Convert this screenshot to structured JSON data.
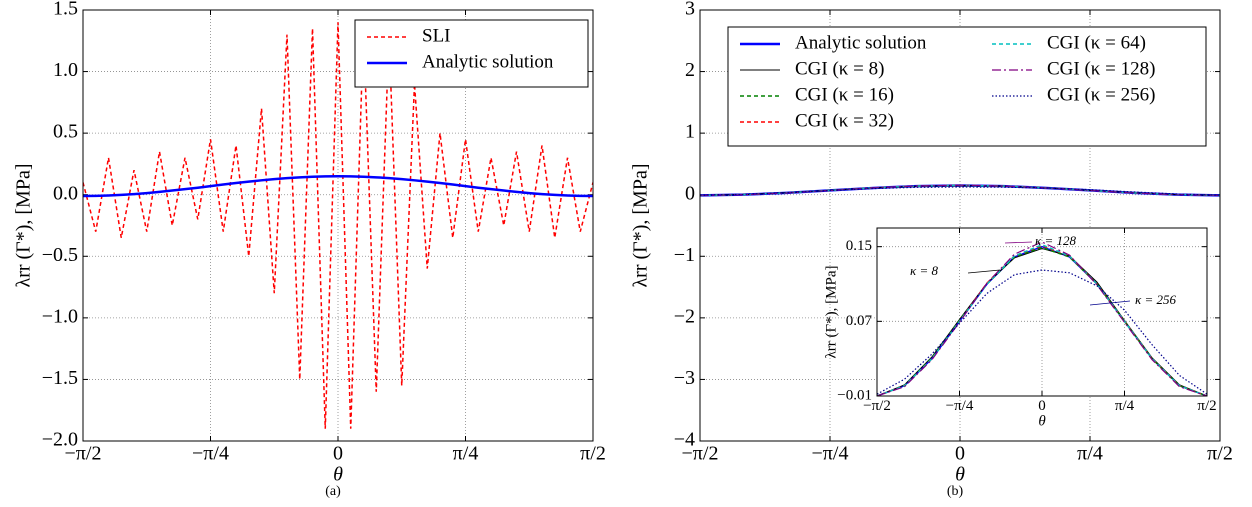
{
  "chart_data": [
    {
      "type": "line",
      "caption": "(a)",
      "xlabel": "θ",
      "ylabel": "λrr (Γ*), [MPa]",
      "grid": true,
      "legend": "upper right",
      "xlim": [
        -1.5708,
        1.5708
      ],
      "xticks": [
        {
          "value": -1.5708,
          "label": "−π/2"
        },
        {
          "value": -0.7854,
          "label": "−π/4"
        },
        0,
        {
          "value": 0.7854,
          "label": "π/4"
        },
        {
          "value": 1.5708,
          "label": "π/2"
        }
      ],
      "ylim": [
        -2.0,
        1.5
      ],
      "yticks": [
        {
          "value": -2.0,
          "label": "−2.0"
        },
        {
          "value": -1.5,
          "label": "−1.5"
        },
        {
          "value": -1.0,
          "label": "−1.0"
        },
        {
          "value": -0.5,
          "label": "−0.5"
        },
        {
          "value": 0,
          "label": "0.0"
        },
        0.5,
        {
          "value": 1.0,
          "label": "1.0"
        },
        1.5
      ],
      "x": [
        -1.5708,
        -1.4923,
        -1.4137,
        -1.3352,
        -1.2566,
        -1.1781,
        -1.0996,
        -1.021,
        -0.9425,
        -0.8639,
        -0.7854,
        -0.7069,
        -0.6283,
        -0.5498,
        -0.4712,
        -0.3927,
        -0.3142,
        -0.2356,
        -0.1571,
        -0.0785,
        0,
        0.0785,
        0.1571,
        0.2356,
        0.3142,
        0.3927,
        0.4712,
        0.5498,
        0.6283,
        0.7069,
        0.7854,
        0.8639,
        0.9425,
        1.021,
        1.0996,
        1.1781,
        1.2566,
        1.3352,
        1.4137,
        1.4923,
        1.5708
      ],
      "series": [
        {
          "name": "SLI",
          "color": "#ff0000",
          "style": "dashed",
          "width": 1.5,
          "values": [
            0.1,
            -0.3,
            0.3,
            -0.35,
            0.2,
            -0.3,
            0.35,
            -0.25,
            0.3,
            -0.2,
            0.45,
            -0.3,
            0.4,
            -0.5,
            0.7,
            -0.8,
            1.3,
            -1.5,
            1.35,
            -1.9,
            1.4,
            -1.9,
            1.35,
            -1.6,
            1.3,
            -1.55,
            0.9,
            -0.6,
            0.5,
            -0.35,
            0.45,
            -0.3,
            0.3,
            -0.25,
            0.35,
            -0.3,
            0.4,
            -0.35,
            0.3,
            -0.3,
            0.1
          ]
        },
        {
          "name": "Analytic solution",
          "color": "#0000ff",
          "style": "solid",
          "width": 2.5,
          "values": [
            -0.01,
            -0.009,
            -0.006,
            -0.001,
            0.005,
            0.013,
            0.023,
            0.034,
            0.045,
            0.057,
            0.07,
            0.083,
            0.095,
            0.106,
            0.117,
            0.127,
            0.135,
            0.141,
            0.146,
            0.149,
            0.15,
            0.149,
            0.146,
            0.141,
            0.135,
            0.127,
            0.117,
            0.106,
            0.095,
            0.083,
            0.07,
            0.057,
            0.045,
            0.034,
            0.023,
            0.013,
            0.005,
            -0.001,
            -0.006,
            -0.009,
            -0.01
          ]
        }
      ]
    },
    {
      "type": "line",
      "caption": "(b)",
      "xlabel": "θ",
      "ylabel": "λrr (Γ*), [MPa]",
      "grid": true,
      "legend": "upper center",
      "legend_columns": 2,
      "xlim": [
        -1.5708,
        1.5708
      ],
      "xticks": [
        {
          "value": -1.5708,
          "label": "−π/2"
        },
        {
          "value": -0.7854,
          "label": "−π/4"
        },
        0,
        {
          "value": 0.7854,
          "label": "π/4"
        },
        {
          "value": 1.5708,
          "label": "π/2"
        }
      ],
      "ylim": [
        -4,
        3
      ],
      "yticks": [
        {
          "value": -4,
          "label": "−4"
        },
        {
          "value": -3,
          "label": "−3"
        },
        {
          "value": -2,
          "label": "−2"
        },
        {
          "value": -1,
          "label": "−1"
        },
        0,
        1,
        2,
        3
      ],
      "x": [
        -1.5708,
        -1.309,
        -1.0472,
        -0.7854,
        -0.5236,
        -0.2618,
        0,
        0.2618,
        0.5236,
        0.7854,
        1.0472,
        1.309,
        1.5708
      ],
      "series": [
        {
          "name": "Analytic solution",
          "color": "#0000ff",
          "style": "solid",
          "width": 2.5,
          "values": [
            -0.01,
            0.001,
            0.03,
            0.07,
            0.11,
            0.139,
            0.15,
            0.139,
            0.11,
            0.07,
            0.03,
            0.001,
            -0.01
          ]
        },
        {
          "name": "CGI (κ = 8)",
          "color": "#000000",
          "style": "solid",
          "width": 1,
          "values": [
            -0.01,
            0.002,
            0.032,
            0.072,
            0.111,
            0.138,
            0.148,
            0.14,
            0.112,
            0.071,
            0.031,
            0.002,
            -0.01
          ]
        },
        {
          "name": "CGI (κ = 16)",
          "color": "#008000",
          "style": "dashed",
          "width": 1.5,
          "values": [
            -0.01,
            0.001,
            0.031,
            0.071,
            0.11,
            0.139,
            0.149,
            0.139,
            0.11,
            0.07,
            0.03,
            0.001,
            -0.01
          ]
        },
        {
          "name": "CGI (κ = 32)",
          "color": "#ff0000",
          "style": "dashed",
          "width": 1.5,
          "values": [
            -0.01,
            0.001,
            0.03,
            0.07,
            0.111,
            0.14,
            0.151,
            0.14,
            0.11,
            0.07,
            0.03,
            0.001,
            -0.01
          ]
        },
        {
          "name": "CGI (κ = 64)",
          "color": "#00bfbf",
          "style": "dashed",
          "width": 1.5,
          "values": [
            -0.01,
            0.001,
            0.03,
            0.07,
            0.11,
            0.14,
            0.152,
            0.14,
            0.11,
            0.07,
            0.03,
            0.001,
            -0.01
          ]
        },
        {
          "name": "CGI (κ = 128)",
          "color": "#800080",
          "style": "dashdot",
          "width": 1.2,
          "values": [
            -0.01,
            0.0,
            0.029,
            0.069,
            0.111,
            0.142,
            0.155,
            0.141,
            0.109,
            0.069,
            0.029,
            0.0,
            -0.01
          ]
        },
        {
          "name": "CGI (κ = 256)",
          "color": "#00008b",
          "style": "dotted",
          "width": 1.2,
          "values": [
            -0.008,
            0.008,
            0.035,
            0.068,
            0.1,
            0.12,
            0.125,
            0.122,
            0.108,
            0.082,
            0.045,
            0.012,
            -0.008
          ]
        }
      ]
    },
    {
      "type": "inset",
      "xlabel": "θ",
      "ylabel": "λrr (Γ*), [MPa]",
      "grid": true,
      "xlim": [
        -1.5708,
        1.5708
      ],
      "xticks": [
        {
          "value": -1.5708,
          "label": "−π/2"
        },
        {
          "value": -0.7854,
          "label": "−π/4"
        },
        0,
        {
          "value": 0.7854,
          "label": "π/4"
        },
        {
          "value": 1.5708,
          "label": "π/2"
        }
      ],
      "ylim": [
        -0.01,
        0.17
      ],
      "yticks": [
        {
          "value": -0.01,
          "label": "−0.01"
        },
        0.07,
        0.15
      ],
      "annotations": [
        "κ = 8",
        "κ = 128",
        "κ = 256"
      ]
    }
  ]
}
